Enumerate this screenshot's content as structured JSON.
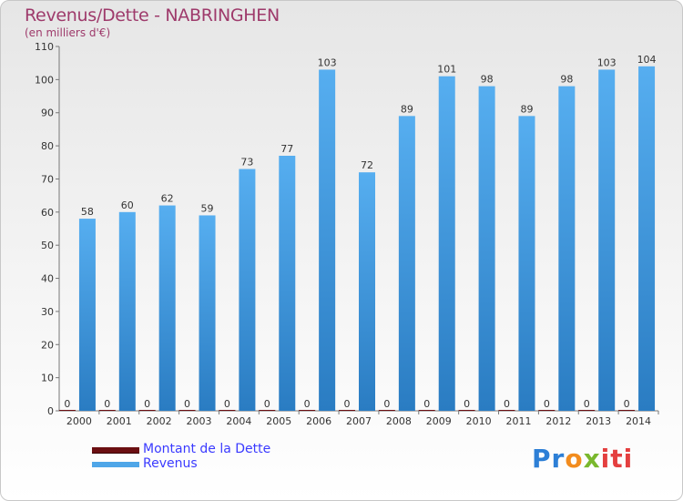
{
  "title": "Revenus/Dette - NABRINGHEN",
  "subtitle": "(en milliers d'€)",
  "legend": {
    "debt": "Montant de la Dette",
    "revenue": "Revenus"
  },
  "logo": {
    "parts": [
      "Pr",
      "o",
      "x",
      "iti"
    ]
  },
  "colors": {
    "revenue": "#4fa6e8",
    "revenue_dark": "#2b7cc0",
    "debt": "#6b0f12",
    "title": "#9e3a6b",
    "legend_text": "#3a3aff"
  },
  "chart_data": {
    "type": "bar",
    "categories": [
      "2000",
      "2001",
      "2002",
      "2003",
      "2004",
      "2005",
      "2006",
      "2007",
      "2008",
      "2009",
      "2010",
      "2011",
      "2012",
      "2013",
      "2014"
    ],
    "series": [
      {
        "name": "Montant de la Dette",
        "values": [
          0,
          0,
          0,
          0,
          0,
          0,
          0,
          0,
          0,
          0,
          0,
          0,
          0,
          0,
          0
        ]
      },
      {
        "name": "Revenus",
        "values": [
          58,
          60,
          62,
          59,
          73,
          77,
          103,
          72,
          89,
          101,
          98,
          89,
          98,
          103,
          104
        ]
      }
    ],
    "ylim": [
      0,
      110
    ],
    "yticks": [
      0,
      10,
      20,
      30,
      40,
      50,
      60,
      70,
      80,
      90,
      100,
      110
    ],
    "grid": false,
    "legend_position": "bottom-left"
  }
}
